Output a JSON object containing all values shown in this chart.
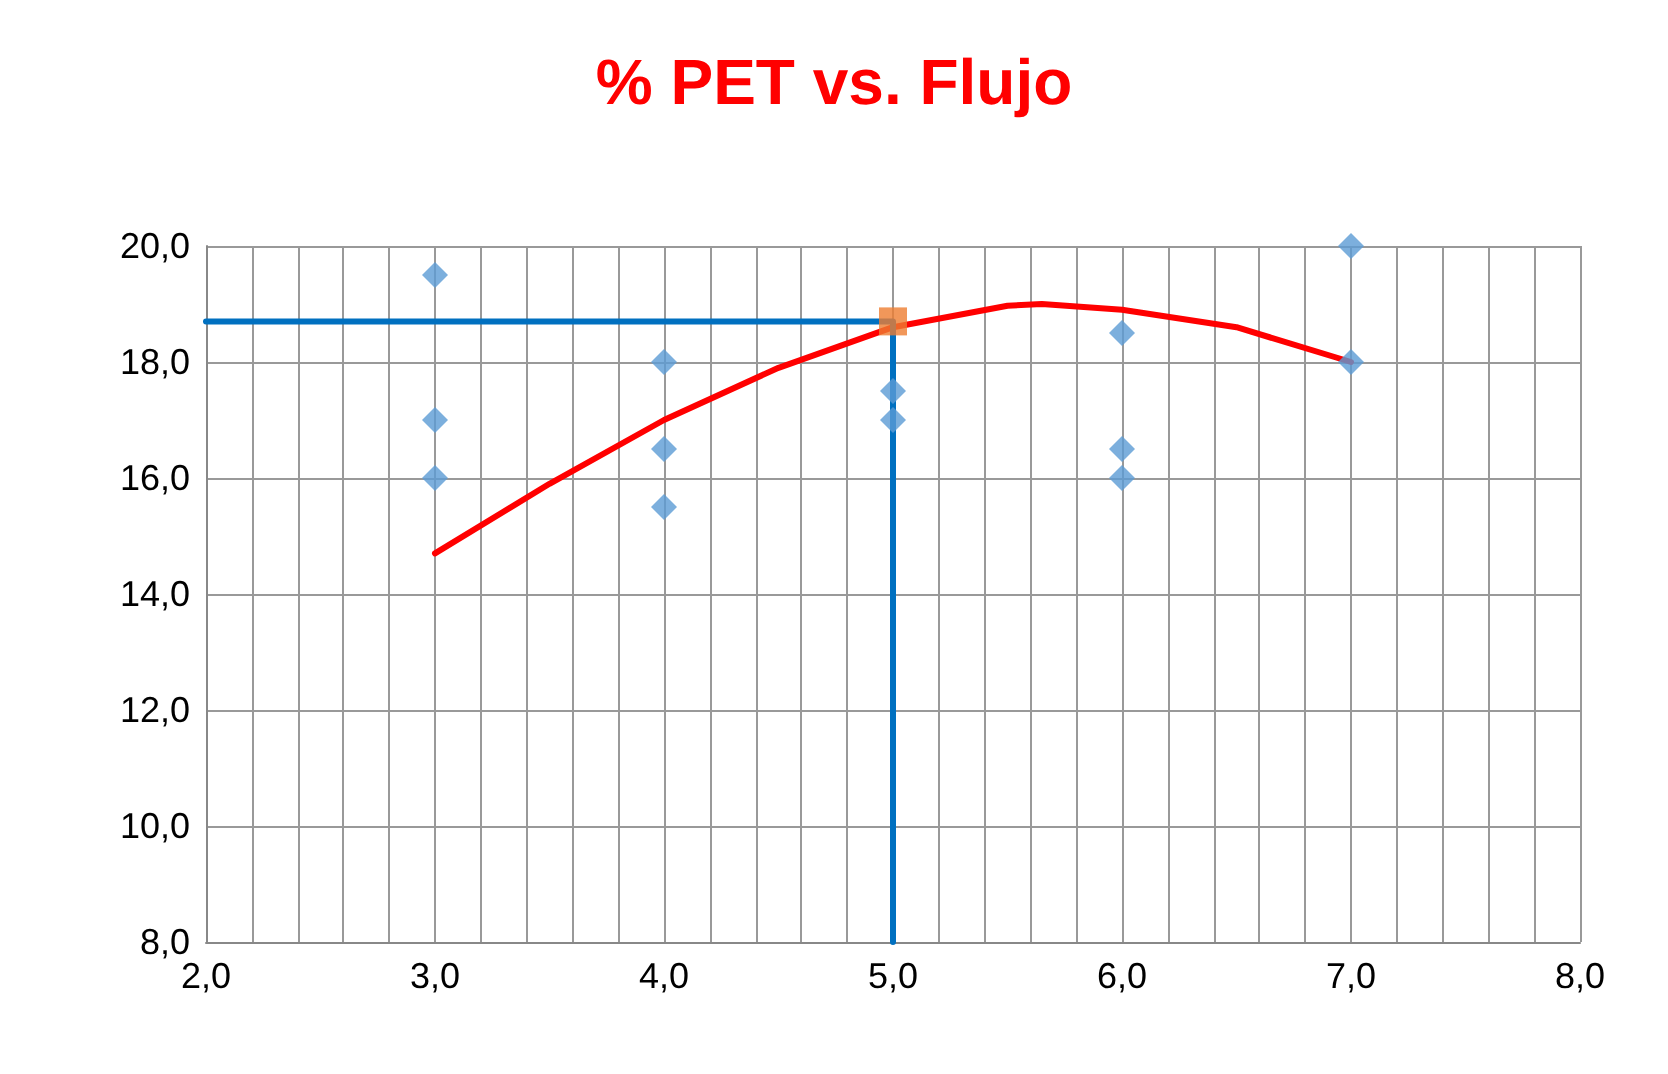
{
  "chart_data": {
    "type": "scatter",
    "title": "% PET vs. Flujo",
    "xlim": [
      2,
      8
    ],
    "ylim": [
      8,
      20
    ],
    "xticks": [
      {
        "value": 2,
        "label": "2,0"
      },
      {
        "value": 2.2,
        "label": null
      },
      {
        "value": 2.4,
        "label": null
      },
      {
        "value": 2.6,
        "label": null
      },
      {
        "value": 2.8,
        "label": null
      },
      {
        "value": 3,
        "label": "3,0"
      },
      {
        "value": 3.2,
        "label": null
      },
      {
        "value": 3.4,
        "label": null
      },
      {
        "value": 3.6,
        "label": null
      },
      {
        "value": 3.8,
        "label": null
      },
      {
        "value": 4,
        "label": "4,0"
      },
      {
        "value": 4.2,
        "label": null
      },
      {
        "value": 4.4,
        "label": null
      },
      {
        "value": 4.6,
        "label": null
      },
      {
        "value": 4.8,
        "label": null
      },
      {
        "value": 5,
        "label": "5,0"
      },
      {
        "value": 5.2,
        "label": null
      },
      {
        "value": 5.4,
        "label": null
      },
      {
        "value": 5.6,
        "label": null
      },
      {
        "value": 5.8,
        "label": null
      },
      {
        "value": 6,
        "label": "6,0"
      },
      {
        "value": 6.2,
        "label": null
      },
      {
        "value": 6.4,
        "label": null
      },
      {
        "value": 6.6,
        "label": null
      },
      {
        "value": 6.8,
        "label": null
      },
      {
        "value": 7,
        "label": "7,0"
      },
      {
        "value": 7.2,
        "label": null
      },
      {
        "value": 7.4,
        "label": null
      },
      {
        "value": 7.6,
        "label": null
      },
      {
        "value": 7.8,
        "label": null
      },
      {
        "value": 8,
        "label": "8,0"
      }
    ],
    "yticks": [
      {
        "value": 8,
        "label": "8,0"
      },
      {
        "value": 10,
        "label": "10,0"
      },
      {
        "value": 12,
        "label": "12,0"
      },
      {
        "value": 14,
        "label": "14,0"
      },
      {
        "value": 16,
        "label": "16,0"
      },
      {
        "value": 18,
        "label": "18,0"
      },
      {
        "value": 20,
        "label": "20,0"
      }
    ],
    "grid": true,
    "series": [
      {
        "marker": "diamond",
        "color": "#5b9bd5",
        "x": [
          3,
          3,
          3,
          4,
          4,
          4,
          5,
          5,
          6,
          6,
          6,
          7,
          7
        ],
        "values": [
          19.5,
          17,
          16,
          18,
          16.5,
          15.5,
          17.5,
          17,
          18.5,
          16.5,
          16,
          20,
          18
        ]
      },
      {
        "type": "line",
        "marker": "none",
        "color": "#ff0000",
        "x": [
          3,
          3.5,
          4,
          4.5,
          5,
          5.5,
          5.65,
          6,
          6.5,
          7
        ],
        "values": [
          14.7,
          15.9,
          17.0,
          17.9,
          18.6,
          18.97,
          19.0,
          18.9,
          18.6,
          18.0
        ]
      },
      {
        "type": "line",
        "marker": "none",
        "color": "#0070c0",
        "x": [
          2,
          5,
          5
        ],
        "values": [
          18.7,
          18.7,
          8
        ]
      },
      {
        "marker": "square",
        "color": "#ed7d31",
        "x": [
          5
        ],
        "values": [
          18.7
        ]
      }
    ]
  }
}
